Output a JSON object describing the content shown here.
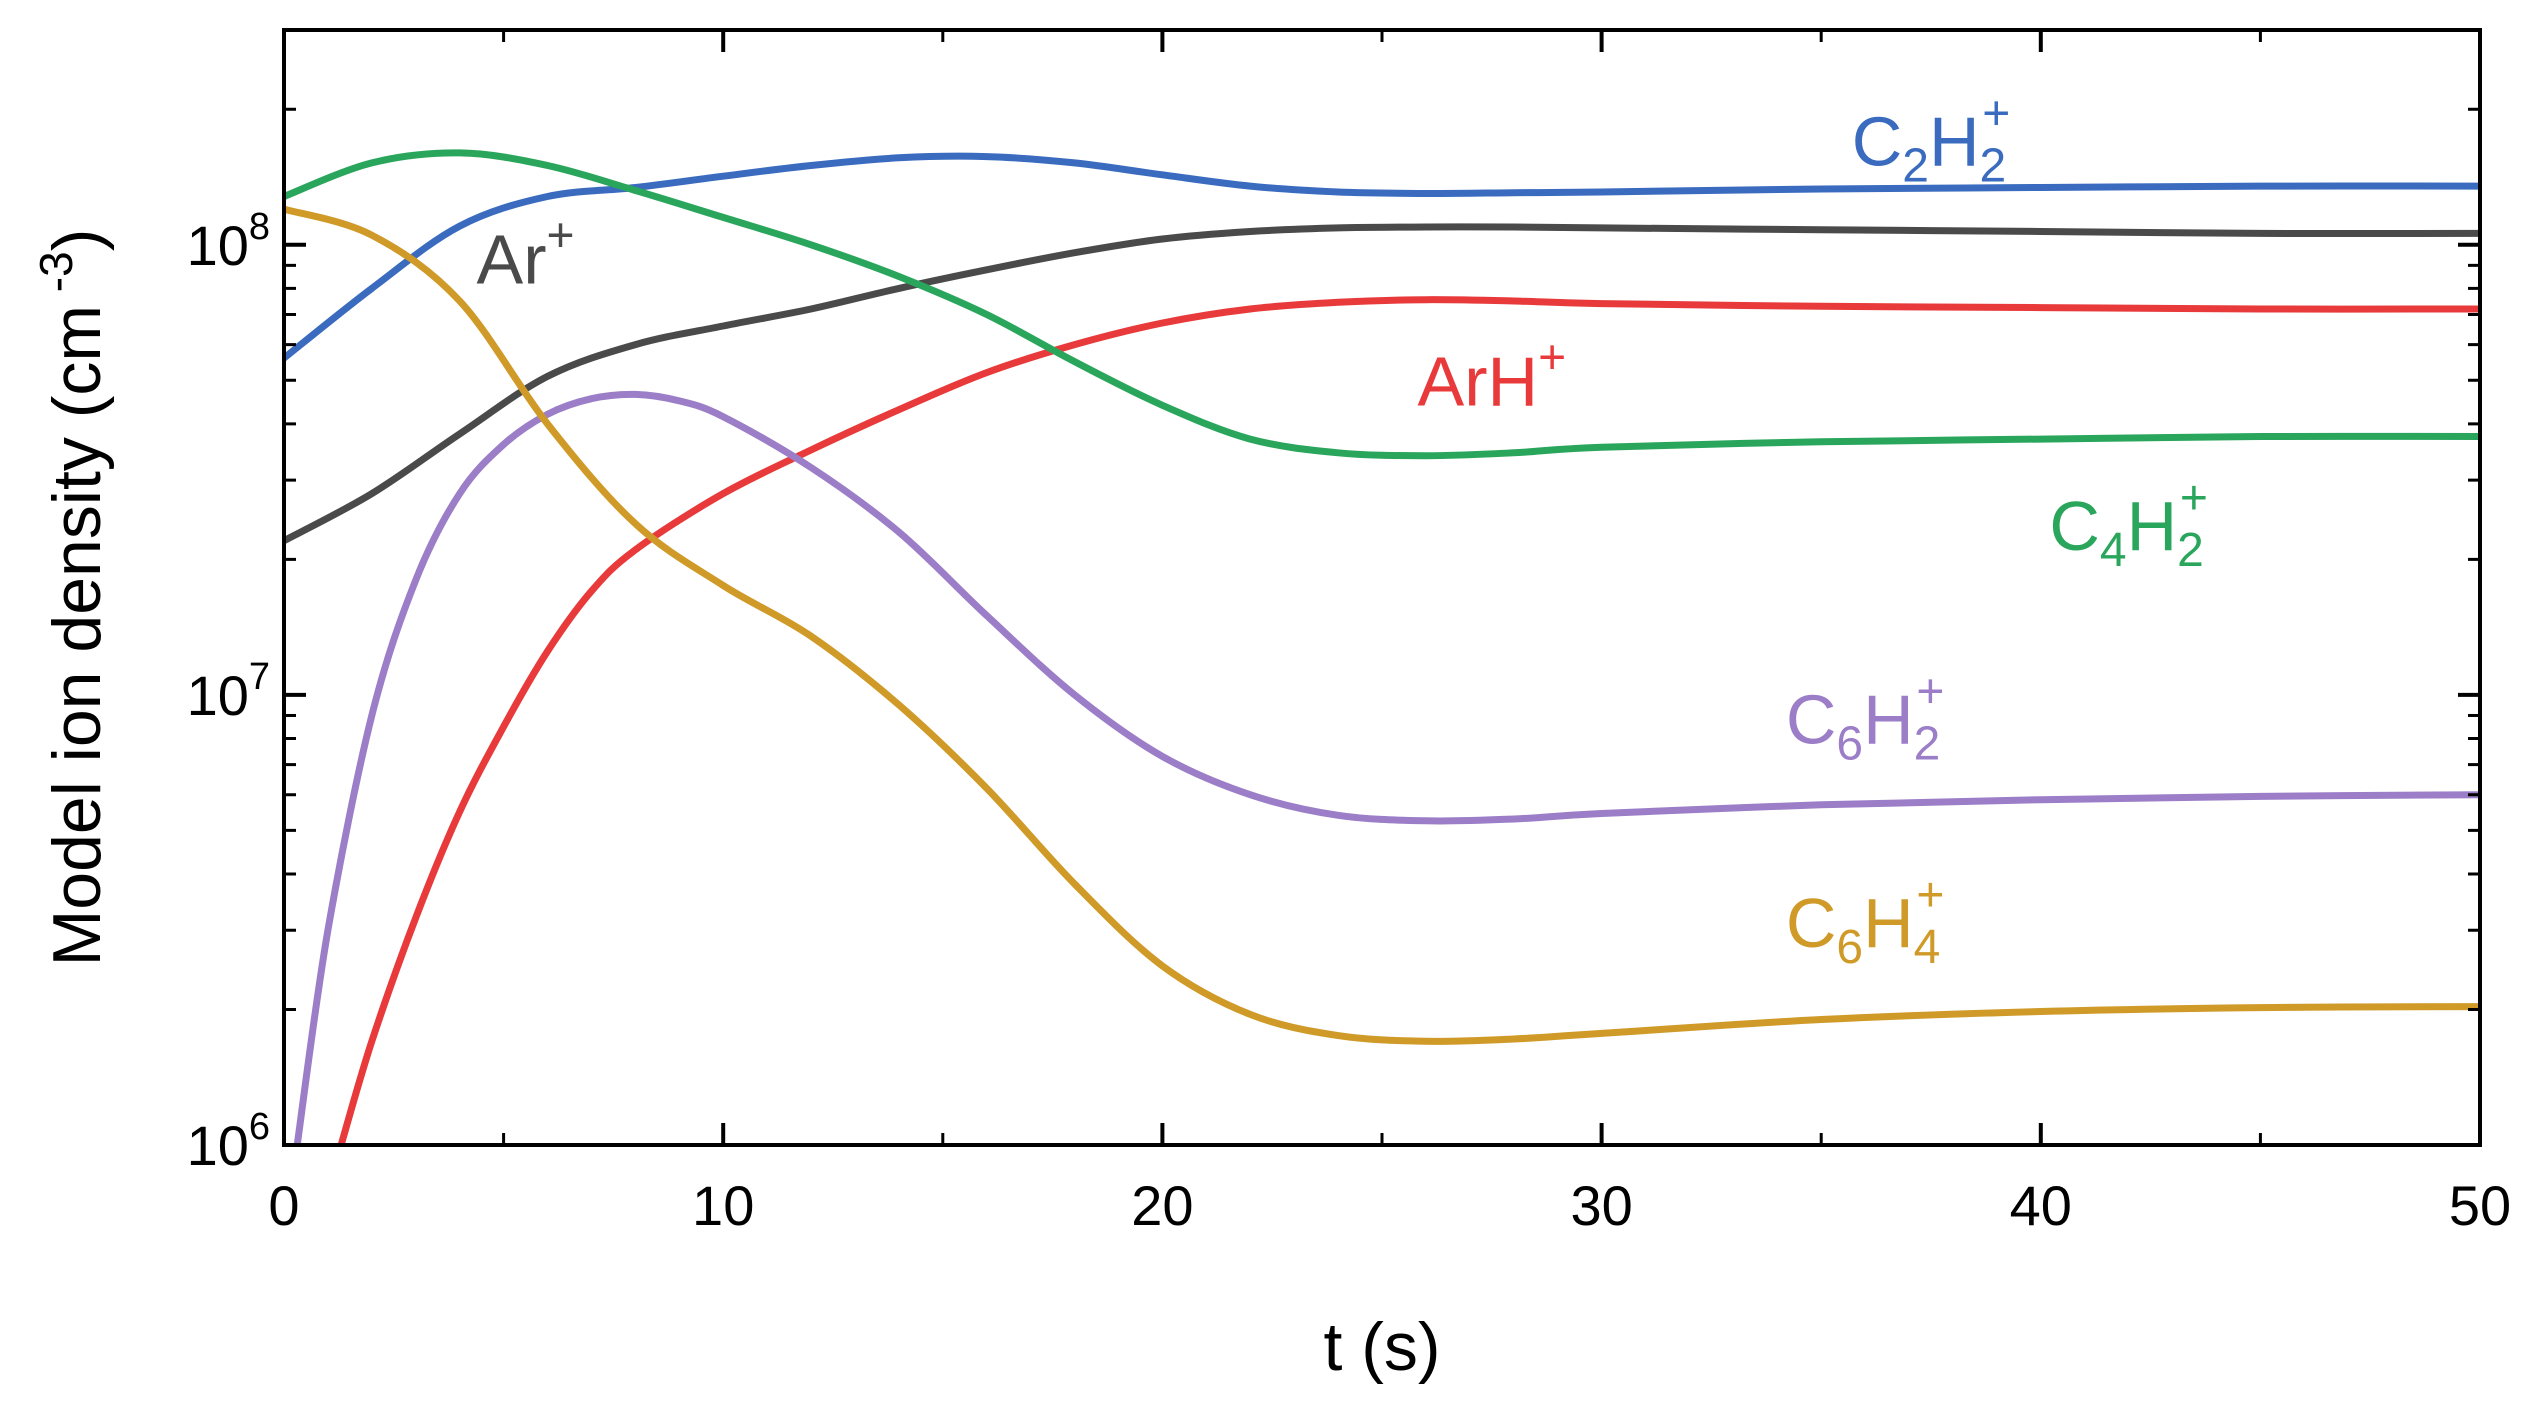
{
  "chart_data": {
    "type": "line",
    "title": "",
    "xlabel": "t (s)",
    "ylabel": "Model ion density (cm",
    "ylabel_sup": "-3",
    "ylabel_tail": ")",
    "xlim": [
      0,
      50
    ],
    "ylim": [
      1000000,
      300000000
    ],
    "yscale": "log",
    "grid": false,
    "legend": "inline labels",
    "x_ticks": [
      0,
      10,
      20,
      30,
      40,
      50
    ],
    "x_tick_labels": [
      "0",
      "10",
      "20",
      "30",
      "40",
      "50"
    ],
    "y_ticks": [
      1000000,
      10000000,
      100000000
    ],
    "y_tick_labels": [
      {
        "base": "10",
        "exp": "6"
      },
      {
        "base": "10",
        "exp": "7"
      },
      {
        "base": "10",
        "exp": "8"
      }
    ],
    "series": [
      {
        "name": "C2H2+",
        "label": {
          "main": "C",
          "sub1": "2",
          "main2": "H",
          "sub2": "2",
          "sup": "+"
        },
        "color": "#3a6bbf",
        "x": [
          0,
          2,
          4,
          6,
          8,
          10,
          12,
          14,
          16,
          18,
          20,
          22,
          24,
          26,
          28,
          30,
          35,
          40,
          45,
          50
        ],
        "values": [
          56000000,
          80000000,
          110000000,
          128000000,
          134000000,
          142000000,
          150000000,
          156000000,
          157000000,
          152000000,
          143000000,
          135000000,
          131000000,
          130000000,
          130500000,
          131000000,
          133000000,
          134000000,
          135000000,
          135000000
        ]
      },
      {
        "name": "Ar+",
        "label": {
          "main": "Ar",
          "sup": "+"
        },
        "color": "#4a4a4a",
        "x": [
          0,
          2,
          4,
          6,
          8,
          10,
          12,
          14,
          16,
          18,
          20,
          22,
          24,
          26,
          28,
          30,
          35,
          40,
          45,
          50
        ],
        "values": [
          22000000,
          28000000,
          38000000,
          51000000,
          60000000,
          66000000,
          72000000,
          80000000,
          88000000,
          96000000,
          103000000,
          107000000,
          109000000,
          109500000,
          109500000,
          109000000,
          108000000,
          107000000,
          106000000,
          106000000
        ]
      },
      {
        "name": "ArH+",
        "label": {
          "main": "ArH",
          "sup": "+"
        },
        "color": "#e83a3a",
        "x": [
          1.3,
          2,
          3,
          4,
          5,
          6,
          7,
          8,
          10,
          12,
          14,
          16,
          18,
          20,
          22,
          24,
          26,
          28,
          30,
          35,
          40,
          45,
          50
        ],
        "values": [
          1000000,
          1700000,
          3200000,
          5500000,
          8500000,
          12500000,
          17000000,
          21000000,
          28000000,
          35000000,
          43000000,
          52000000,
          60000000,
          67000000,
          72000000,
          74500000,
          75500000,
          75000000,
          74000000,
          73000000,
          72500000,
          72000000,
          72000000
        ]
      },
      {
        "name": "C4H2+",
        "label": {
          "main": "C",
          "sub1": "4",
          "main2": "H",
          "sub2": "2",
          "sup": "+"
        },
        "color": "#2aa65c",
        "x": [
          0,
          2,
          4,
          6,
          8,
          10,
          12,
          14,
          16,
          18,
          20,
          22,
          24,
          26,
          28,
          30,
          35,
          40,
          45,
          50
        ],
        "values": [
          128000000,
          152000000,
          160000000,
          150000000,
          132000000,
          115000000,
          100000000,
          85000000,
          70000000,
          55000000,
          44000000,
          37000000,
          34500000,
          34000000,
          34500000,
          35500000,
          36500000,
          37000000,
          37500000,
          37500000
        ]
      },
      {
        "name": "C6H2+",
        "label": {
          "main": "C",
          "sub1": "6",
          "main2": "H",
          "sub2": "2",
          "sup": "+"
        },
        "color": "#9b7ec7",
        "x": [
          0.3,
          1,
          2,
          3,
          4,
          5,
          6,
          7,
          8,
          9,
          10,
          12,
          14,
          16,
          18,
          20,
          22,
          24,
          26,
          28,
          30,
          35,
          40,
          45,
          50
        ],
        "values": [
          1000000,
          3000000,
          9000000,
          18000000,
          28000000,
          36000000,
          42000000,
          45500000,
          46500000,
          45000000,
          41500000,
          32000000,
          23000000,
          15000000,
          10000000,
          7300000,
          6000000,
          5400000,
          5250000,
          5300000,
          5450000,
          5700000,
          5850000,
          5950000,
          6000000
        ]
      },
      {
        "name": "C6H4+",
        "label": {
          "main": "C",
          "sub1": "6",
          "main2": "H",
          "sub2": "4",
          "sup": "+"
        },
        "color": "#cf9a28",
        "x": [
          0,
          2,
          4,
          6,
          8,
          10,
          12,
          14,
          16,
          18,
          20,
          22,
          24,
          26,
          28,
          30,
          35,
          40,
          45,
          50
        ],
        "values": [
          120000000,
          105000000,
          75000000,
          40000000,
          24000000,
          17500000,
          13500000,
          9500000,
          6200000,
          3800000,
          2500000,
          1950000,
          1750000,
          1700000,
          1720000,
          1770000,
          1900000,
          1980000,
          2020000,
          2030000
        ]
      }
    ]
  }
}
